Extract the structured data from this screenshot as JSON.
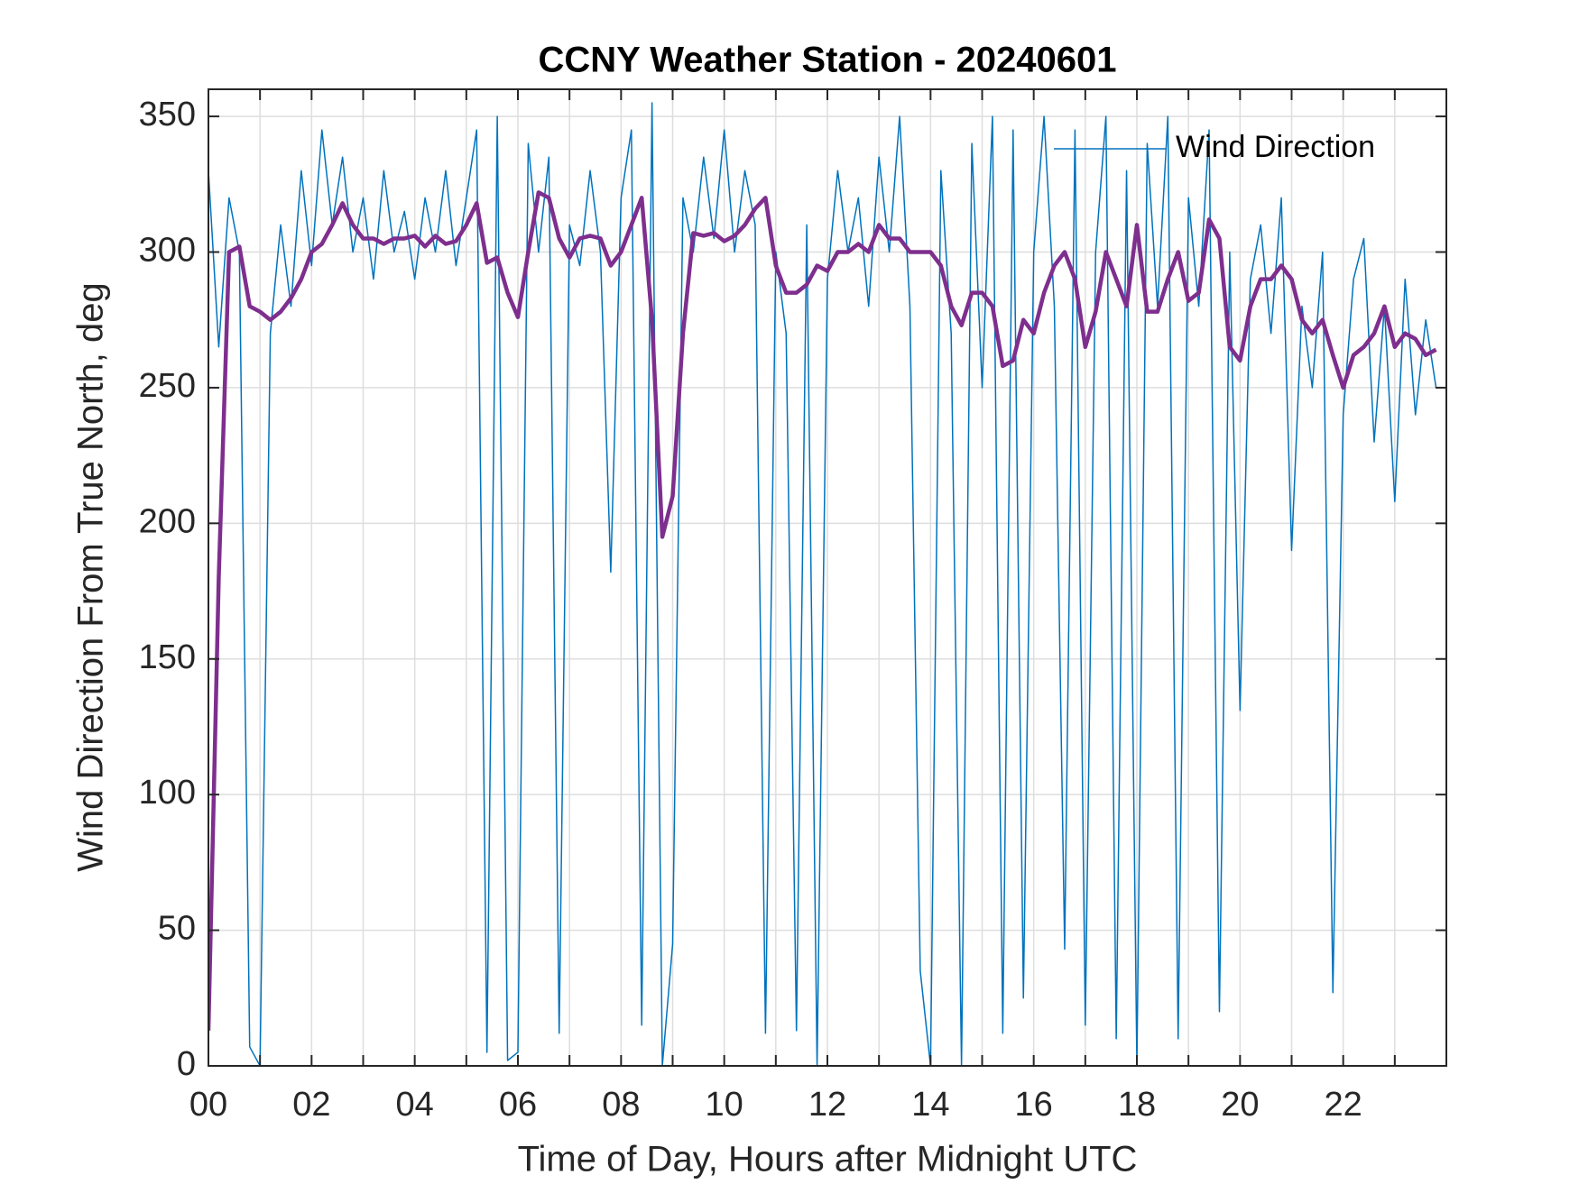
{
  "chart_data": {
    "type": "line",
    "title": "CCNY Weather Station - 20240601",
    "xlabel": "Time of Day, Hours after Midnight UTC",
    "ylabel": "Wind Direction From True North, deg",
    "x": [
      0,
      0.2,
      0.4,
      0.6,
      0.8,
      1,
      1.2,
      1.4,
      1.6,
      1.8,
      2,
      2.2,
      2.4,
      2.6,
      2.8,
      3,
      3.2,
      3.4,
      3.6,
      3.8,
      4,
      4.2,
      4.4,
      4.6,
      4.8,
      5,
      5.2,
      5.4,
      5.6,
      5.8,
      6,
      6.2,
      6.4,
      6.6,
      6.8,
      7,
      7.2,
      7.4,
      7.6,
      7.8,
      8,
      8.2,
      8.4,
      8.6,
      8.8,
      9,
      9.2,
      9.4,
      9.6,
      9.8,
      10,
      10.2,
      10.4,
      10.6,
      10.8,
      11,
      11.2,
      11.4,
      11.6,
      11.8,
      12,
      12.2,
      12.4,
      12.6,
      12.8,
      13,
      13.2,
      13.4,
      13.6,
      13.8,
      14,
      14.2,
      14.4,
      14.6,
      14.8,
      15,
      15.2,
      15.4,
      15.6,
      15.8,
      16,
      16.2,
      16.4,
      16.6,
      16.8,
      17,
      17.2,
      17.4,
      17.6,
      17.8,
      18,
      18.2,
      18.4,
      18.6,
      18.8,
      19,
      19.2,
      19.4,
      19.6,
      19.8,
      20,
      20.2,
      20.4,
      20.6,
      20.8,
      21,
      21.2,
      21.4,
      21.6,
      21.8,
      22,
      22.2,
      22.4,
      22.6,
      22.8,
      23,
      23.2,
      23.4,
      23.6,
      23.8
    ],
    "series": [
      {
        "name": "Wind Direction",
        "color": "#0072bd",
        "width": 1.5,
        "values": [
          330,
          265,
          320,
          300,
          7,
          0,
          270,
          310,
          280,
          330,
          295,
          345,
          310,
          335,
          300,
          320,
          290,
          330,
          300,
          315,
          290,
          320,
          300,
          330,
          295,
          320,
          345,
          5,
          350,
          2,
          5,
          340,
          300,
          335,
          12,
          310,
          295,
          330,
          300,
          182,
          320,
          345,
          15,
          355,
          0,
          45,
          320,
          300,
          335,
          305,
          345,
          300,
          330,
          310,
          12,
          300,
          270,
          13,
          310,
          0,
          290,
          330,
          300,
          320,
          280,
          335,
          300,
          350,
          280,
          35,
          0,
          330,
          270,
          0,
          340,
          250,
          350,
          12,
          345,
          25,
          300,
          350,
          280,
          43,
          345,
          15,
          300,
          350,
          10,
          330,
          0,
          340,
          280,
          350,
          10,
          320,
          280,
          345,
          20,
          300,
          131,
          290,
          310,
          270,
          320,
          190,
          280,
          250,
          300,
          27,
          240,
          290,
          305,
          230,
          280,
          208,
          290,
          240,
          275,
          250
        ]
      },
      {
        "color": "#7e2f8e",
        "width": 4.5,
        "values": [
          13,
          180,
          300,
          302,
          280,
          278,
          275,
          278,
          283,
          290,
          300,
          303,
          310,
          318,
          310,
          305,
          305,
          303,
          305,
          305,
          306,
          302,
          306,
          303,
          304,
          310,
          318,
          296,
          298,
          285,
          276,
          300,
          322,
          320,
          305,
          298,
          305,
          306,
          305,
          295,
          300,
          310,
          320,
          275,
          195,
          210,
          270,
          307,
          306,
          307,
          304,
          306,
          310,
          316,
          320,
          295,
          285,
          285,
          288,
          295,
          293,
          300,
          300,
          303,
          300,
          310,
          305,
          305,
          300,
          300,
          300,
          295,
          280,
          273,
          285,
          285,
          280,
          258,
          260,
          275,
          270,
          285,
          295,
          300,
          290,
          265,
          278,
          300,
          290,
          280,
          310,
          278,
          278,
          290,
          300,
          282,
          285,
          312,
          305,
          265,
          260,
          280,
          290,
          290,
          295,
          290,
          275,
          270,
          275,
          262,
          250,
          262,
          265,
          270,
          280,
          265,
          270,
          268,
          262,
          264
        ]
      }
    ],
    "xlim": [
      0,
      24
    ],
    "ylim": [
      0,
      360
    ],
    "xticks": [
      {
        "value": 0,
        "label": "00"
      },
      {
        "value": 2,
        "label": "02"
      },
      {
        "value": 4,
        "label": "04"
      },
      {
        "value": 6,
        "label": "06"
      },
      {
        "value": 8,
        "label": "08"
      },
      {
        "value": 10,
        "label": "10"
      },
      {
        "value": 12,
        "label": "12"
      },
      {
        "value": 14,
        "label": "14"
      },
      {
        "value": 16,
        "label": "16"
      },
      {
        "value": 18,
        "label": "18"
      },
      {
        "value": 20,
        "label": "20"
      },
      {
        "value": 22,
        "label": "22"
      }
    ],
    "xminorticks": [
      1,
      3,
      5,
      7,
      9,
      11,
      13,
      15,
      17,
      19,
      21,
      23
    ],
    "yticks": [
      0,
      50,
      100,
      150,
      200,
      250,
      300,
      350
    ],
    "grid": true,
    "legend": "northeast"
  }
}
